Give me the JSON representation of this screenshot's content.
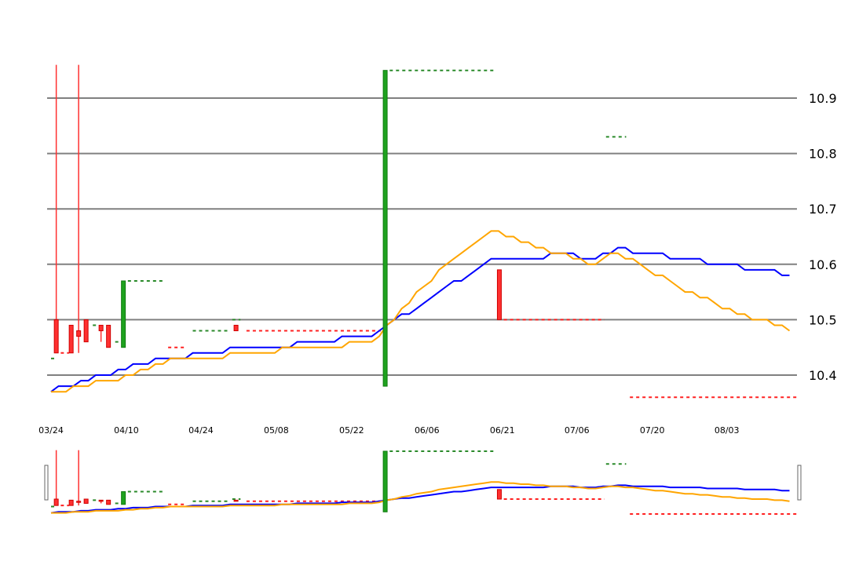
{
  "chart_data": {
    "type": "candlestick-line",
    "title": "",
    "xlabel": "",
    "ylabel": "",
    "ylim": [
      10.36,
      10.97
    ],
    "grid": true,
    "y_ticks": [
      "10.4",
      "10.5",
      "10.6",
      "10.7",
      "10.8",
      "10.9"
    ],
    "x_ticks": [
      "03/24",
      "04/10",
      "04/24",
      "05/08",
      "05/22",
      "06/06",
      "06/21",
      "07/06",
      "07/20",
      "08/03"
    ],
    "colors": {
      "up": "#1fa21f",
      "down": "#ff3030",
      "line_blue": "#0000ff",
      "line_orange": "#ffa500",
      "grid": "#808080"
    },
    "candles": [
      {
        "x": 0.7,
        "open": 10.5,
        "close": 10.44,
        "high": 10.96,
        "low": 10.44
      },
      {
        "x": 2.7,
        "open": 10.49,
        "close": 10.44,
        "high": 10.49,
        "low": 10.44
      },
      {
        "x": 3.7,
        "open": 10.48,
        "close": 10.47,
        "high": 10.96,
        "low": 10.44
      },
      {
        "x": 4.7,
        "open": 10.5,
        "close": 10.46,
        "high": 10.5,
        "low": 10.46
      },
      {
        "x": 6.7,
        "open": 10.49,
        "close": 10.48,
        "high": 10.49,
        "low": 10.46
      },
      {
        "x": 7.7,
        "open": 10.49,
        "close": 10.45,
        "high": 10.49,
        "low": 10.45
      },
      {
        "x": 9.7,
        "open": 10.45,
        "close": 10.57,
        "high": 10.57,
        "low": 10.45
      },
      {
        "x": 24.8,
        "open": 10.49,
        "close": 10.48,
        "high": 10.49,
        "low": 10.48
      },
      {
        "x": 44.8,
        "open": 10.38,
        "close": 10.95,
        "high": 10.95,
        "low": 10.38
      },
      {
        "x": 60.1,
        "open": 10.59,
        "close": 10.5,
        "high": 10.59,
        "low": 10.5
      }
    ],
    "dashed_levels": [
      {
        "x0": 0.0,
        "x1": 0.5,
        "y": 10.43,
        "color": "up"
      },
      {
        "x0": 1.3,
        "x1": 2.4,
        "y": 10.44,
        "color": "down"
      },
      {
        "x0": 5.6,
        "x1": 6.3,
        "y": 10.49,
        "color": "up"
      },
      {
        "x0": 8.6,
        "x1": 9.3,
        "y": 10.46,
        "color": "up"
      },
      {
        "x0": 10.3,
        "x1": 15.0,
        "y": 10.57,
        "color": "up"
      },
      {
        "x0": 15.7,
        "x1": 18.2,
        "y": 10.45,
        "color": "down"
      },
      {
        "x0": 19.0,
        "x1": 23.9,
        "y": 10.48,
        "color": "up"
      },
      {
        "x0": 24.3,
        "x1": 25.4,
        "y": 10.5,
        "color": "up"
      },
      {
        "x0": 26.2,
        "x1": 44.2,
        "y": 10.48,
        "color": "down"
      },
      {
        "x0": 45.4,
        "x1": 59.5,
        "y": 10.95,
        "color": "up"
      },
      {
        "x0": 60.7,
        "x1": 74.2,
        "y": 10.5,
        "color": "down"
      },
      {
        "x0": 74.4,
        "x1": 77.1,
        "y": 10.83,
        "color": "up"
      },
      {
        "x0": 77.6,
        "x1": 100.0,
        "y": 10.36,
        "color": "down"
      }
    ],
    "series": [
      {
        "key": "line_blue",
        "points": [
          [
            0,
            10.37
          ],
          [
            1,
            10.38
          ],
          [
            2,
            10.38
          ],
          [
            3,
            10.38
          ],
          [
            4,
            10.39
          ],
          [
            5,
            10.39
          ],
          [
            6,
            10.4
          ],
          [
            7,
            10.4
          ],
          [
            8,
            10.4
          ],
          [
            9,
            10.41
          ],
          [
            10,
            10.41
          ],
          [
            11,
            10.42
          ],
          [
            12,
            10.42
          ],
          [
            13,
            10.42
          ],
          [
            14,
            10.43
          ],
          [
            15,
            10.43
          ],
          [
            16,
            10.43
          ],
          [
            17,
            10.43
          ],
          [
            18,
            10.43
          ],
          [
            19,
            10.44
          ],
          [
            20,
            10.44
          ],
          [
            21,
            10.44
          ],
          [
            22,
            10.44
          ],
          [
            23,
            10.44
          ],
          [
            24,
            10.45
          ],
          [
            25,
            10.45
          ],
          [
            26,
            10.45
          ],
          [
            27,
            10.45
          ],
          [
            28,
            10.45
          ],
          [
            29,
            10.45
          ],
          [
            30,
            10.45
          ],
          [
            31,
            10.45
          ],
          [
            32,
            10.45
          ],
          [
            33,
            10.46
          ],
          [
            34,
            10.46
          ],
          [
            35,
            10.46
          ],
          [
            36,
            10.46
          ],
          [
            37,
            10.46
          ],
          [
            38,
            10.46
          ],
          [
            39,
            10.47
          ],
          [
            40,
            10.47
          ],
          [
            41,
            10.47
          ],
          [
            42,
            10.47
          ],
          [
            43,
            10.47
          ],
          [
            44,
            10.48
          ],
          [
            45,
            10.49
          ],
          [
            46,
            10.5
          ],
          [
            47,
            10.51
          ],
          [
            48,
            10.51
          ],
          [
            49,
            10.52
          ],
          [
            50,
            10.53
          ],
          [
            51,
            10.54
          ],
          [
            52,
            10.55
          ],
          [
            53,
            10.56
          ],
          [
            54,
            10.57
          ],
          [
            55,
            10.57
          ],
          [
            56,
            10.58
          ],
          [
            57,
            10.59
          ],
          [
            58,
            10.6
          ],
          [
            59,
            10.61
          ],
          [
            60,
            10.61
          ],
          [
            61,
            10.61
          ],
          [
            62,
            10.61
          ],
          [
            63,
            10.61
          ],
          [
            64,
            10.61
          ],
          [
            65,
            10.61
          ],
          [
            66,
            10.61
          ],
          [
            67,
            10.62
          ],
          [
            68,
            10.62
          ],
          [
            69,
            10.62
          ],
          [
            70,
            10.62
          ],
          [
            71,
            10.61
          ],
          [
            72,
            10.61
          ],
          [
            73,
            10.61
          ],
          [
            74,
            10.62
          ],
          [
            75,
            10.62
          ],
          [
            76,
            10.63
          ],
          [
            77,
            10.63
          ],
          [
            78,
            10.62
          ],
          [
            79,
            10.62
          ],
          [
            80,
            10.62
          ],
          [
            81,
            10.62
          ],
          [
            82,
            10.62
          ],
          [
            83,
            10.61
          ],
          [
            84,
            10.61
          ],
          [
            85,
            10.61
          ],
          [
            86,
            10.61
          ],
          [
            87,
            10.61
          ],
          [
            88,
            10.6
          ],
          [
            89,
            10.6
          ],
          [
            90,
            10.6
          ],
          [
            91,
            10.6
          ],
          [
            92,
            10.6
          ],
          [
            93,
            10.59
          ],
          [
            94,
            10.59
          ],
          [
            95,
            10.59
          ],
          [
            96,
            10.59
          ],
          [
            97,
            10.59
          ],
          [
            98,
            10.58
          ],
          [
            99,
            10.58
          ]
        ]
      },
      {
        "key": "line_orange",
        "points": [
          [
            0,
            10.37
          ],
          [
            1,
            10.37
          ],
          [
            2,
            10.37
          ],
          [
            3,
            10.38
          ],
          [
            4,
            10.38
          ],
          [
            5,
            10.38
          ],
          [
            6,
            10.39
          ],
          [
            7,
            10.39
          ],
          [
            8,
            10.39
          ],
          [
            9,
            10.39
          ],
          [
            10,
            10.4
          ],
          [
            11,
            10.4
          ],
          [
            12,
            10.41
          ],
          [
            13,
            10.41
          ],
          [
            14,
            10.42
          ],
          [
            15,
            10.42
          ],
          [
            16,
            10.43
          ],
          [
            17,
            10.43
          ],
          [
            18,
            10.43
          ],
          [
            19,
            10.43
          ],
          [
            20,
            10.43
          ],
          [
            21,
            10.43
          ],
          [
            22,
            10.43
          ],
          [
            23,
            10.43
          ],
          [
            24,
            10.44
          ],
          [
            25,
            10.44
          ],
          [
            26,
            10.44
          ],
          [
            27,
            10.44
          ],
          [
            28,
            10.44
          ],
          [
            29,
            10.44
          ],
          [
            30,
            10.44
          ],
          [
            31,
            10.45
          ],
          [
            32,
            10.45
          ],
          [
            33,
            10.45
          ],
          [
            34,
            10.45
          ],
          [
            35,
            10.45
          ],
          [
            36,
            10.45
          ],
          [
            37,
            10.45
          ],
          [
            38,
            10.45
          ],
          [
            39,
            10.45
          ],
          [
            40,
            10.46
          ],
          [
            41,
            10.46
          ],
          [
            42,
            10.46
          ],
          [
            43,
            10.46
          ],
          [
            44,
            10.47
          ],
          [
            45,
            10.49
          ],
          [
            46,
            10.5
          ],
          [
            47,
            10.52
          ],
          [
            48,
            10.53
          ],
          [
            49,
            10.55
          ],
          [
            50,
            10.56
          ],
          [
            51,
            10.57
          ],
          [
            52,
            10.59
          ],
          [
            53,
            10.6
          ],
          [
            54,
            10.61
          ],
          [
            55,
            10.62
          ],
          [
            56,
            10.63
          ],
          [
            57,
            10.64
          ],
          [
            58,
            10.65
          ],
          [
            59,
            10.66
          ],
          [
            60,
            10.66
          ],
          [
            61,
            10.65
          ],
          [
            62,
            10.65
          ],
          [
            63,
            10.64
          ],
          [
            64,
            10.64
          ],
          [
            65,
            10.63
          ],
          [
            66,
            10.63
          ],
          [
            67,
            10.62
          ],
          [
            68,
            10.62
          ],
          [
            69,
            10.62
          ],
          [
            70,
            10.61
          ],
          [
            71,
            10.61
          ],
          [
            72,
            10.6
          ],
          [
            73,
            10.6
          ],
          [
            74,
            10.61
          ],
          [
            75,
            10.62
          ],
          [
            76,
            10.62
          ],
          [
            77,
            10.61
          ],
          [
            78,
            10.61
          ],
          [
            79,
            10.6
          ],
          [
            80,
            10.59
          ],
          [
            81,
            10.58
          ],
          [
            82,
            10.58
          ],
          [
            83,
            10.57
          ],
          [
            84,
            10.56
          ],
          [
            85,
            10.55
          ],
          [
            86,
            10.55
          ],
          [
            87,
            10.54
          ],
          [
            88,
            10.54
          ],
          [
            89,
            10.53
          ],
          [
            90,
            10.52
          ],
          [
            91,
            10.52
          ],
          [
            92,
            10.51
          ],
          [
            93,
            10.51
          ],
          [
            94,
            10.5
          ],
          [
            95,
            10.5
          ],
          [
            96,
            10.5
          ],
          [
            97,
            10.49
          ],
          [
            98,
            10.49
          ],
          [
            99,
            10.48
          ]
        ]
      }
    ]
  }
}
